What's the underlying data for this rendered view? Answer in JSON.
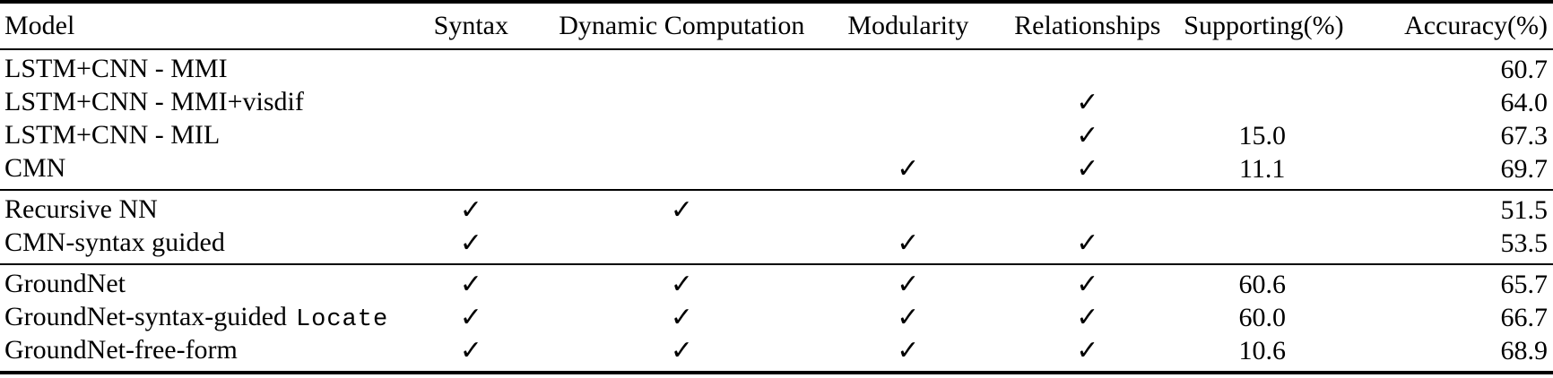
{
  "colors": {
    "background": "#ffffff",
    "text": "#000000",
    "rule": "#000000"
  },
  "icons": {
    "checkmark": "✓"
  },
  "table": {
    "columns": {
      "model": "Model",
      "syntax": "Syntax",
      "dynamic_computation": "Dynamic Computation",
      "modularity": "Modularity",
      "relationships": "Relationships",
      "supporting": "Supporting(%)",
      "accuracy": "Accuracy(%)"
    },
    "groups": [
      {
        "rows": [
          {
            "model": "LSTM+CNN - MMI",
            "model_mono": "",
            "syntax": "",
            "dynamic_computation": "",
            "modularity": "",
            "relationships": "",
            "supporting": "",
            "accuracy": "60.7"
          },
          {
            "model": "LSTM+CNN - MMI+visdif",
            "model_mono": "",
            "syntax": "",
            "dynamic_computation": "",
            "modularity": "",
            "relationships": "✓",
            "supporting": "",
            "accuracy": "64.0"
          },
          {
            "model": "LSTM+CNN - MIL",
            "model_mono": "",
            "syntax": "",
            "dynamic_computation": "",
            "modularity": "",
            "relationships": "✓",
            "supporting": "15.0",
            "accuracy": "67.3"
          },
          {
            "model": "CMN",
            "model_mono": "",
            "syntax": "",
            "dynamic_computation": "",
            "modularity": "✓",
            "relationships": "✓",
            "supporting": "11.1",
            "accuracy": "69.7"
          }
        ]
      },
      {
        "rows": [
          {
            "model": "Recursive NN",
            "model_mono": "",
            "syntax": "✓",
            "dynamic_computation": "✓",
            "modularity": "",
            "relationships": "",
            "supporting": "",
            "accuracy": "51.5"
          },
          {
            "model": "CMN-syntax guided",
            "model_mono": "",
            "syntax": "✓",
            "dynamic_computation": "",
            "modularity": "✓",
            "relationships": "✓",
            "supporting": "",
            "accuracy": "53.5"
          }
        ]
      },
      {
        "rows": [
          {
            "model": "GroundNet",
            "model_mono": "",
            "syntax": "✓",
            "dynamic_computation": "✓",
            "modularity": "✓",
            "relationships": "✓",
            "supporting": "60.6",
            "accuracy": "65.7"
          },
          {
            "model": "GroundNet-syntax-guided",
            "model_mono": "Locate",
            "syntax": "✓",
            "dynamic_computation": "✓",
            "modularity": "✓",
            "relationships": "✓",
            "supporting": "60.0",
            "accuracy": "66.7"
          },
          {
            "model": "GroundNet-free-form",
            "model_mono": "",
            "syntax": "✓",
            "dynamic_computation": "✓",
            "modularity": "✓",
            "relationships": "✓",
            "supporting": "10.6",
            "accuracy": "68.9"
          }
        ]
      }
    ]
  }
}
